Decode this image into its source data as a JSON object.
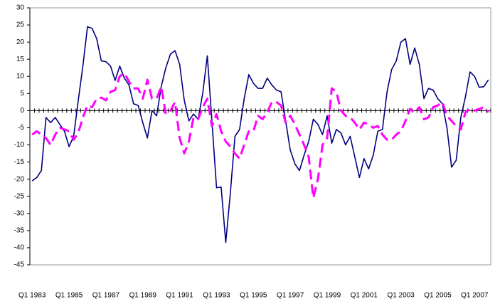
{
  "chart_data": {
    "type": "line",
    "categories": [
      "Q1 1983",
      null,
      null,
      null,
      null,
      null,
      null,
      null,
      "Q1 1985",
      null,
      null,
      null,
      null,
      null,
      null,
      null,
      "Q1 1987",
      null,
      null,
      null,
      null,
      null,
      null,
      null,
      "Q1 1989",
      null,
      null,
      null,
      null,
      null,
      null,
      null,
      "Q1 1991",
      null,
      null,
      null,
      null,
      null,
      null,
      null,
      "Q1 1993",
      null,
      null,
      null,
      null,
      null,
      null,
      null,
      "Q1 1995",
      null,
      null,
      null,
      null,
      null,
      null,
      null,
      "Q1 1997",
      null,
      null,
      null,
      null,
      null,
      null,
      null,
      "Q1 1999",
      null,
      null,
      null,
      null,
      null,
      null,
      null,
      "Q1 2001",
      null,
      null,
      null,
      null,
      null,
      null,
      null,
      "Q1 2003",
      null,
      null,
      null,
      null,
      null,
      null,
      null,
      "Q1 2005",
      null,
      null,
      null,
      null,
      null,
      null,
      null,
      "Q1 2007",
      null,
      null,
      null
    ],
    "series": [
      {
        "color": "#000080",
        "dash": "solid",
        "values": [
          -20.5,
          -19.5,
          -17.5,
          -2,
          -3.5,
          -2,
          -4,
          -6,
          -10.5,
          -7.5,
          3,
          13,
          24.5,
          24,
          21,
          14.5,
          14.3,
          13,
          8.8,
          13,
          9.5,
          7.5,
          2,
          1.5,
          -3.5,
          -8,
          0,
          -1.5,
          7,
          12.5,
          16.5,
          17.5,
          13.5,
          3,
          -3,
          -1,
          -2.5,
          5,
          16,
          -3,
          -22.5,
          -22.3,
          -38.5,
          -24,
          -7.5,
          -5.5,
          3.5,
          10.5,
          8,
          6.5,
          6.5,
          9.5,
          7.5,
          6,
          5.5,
          -3,
          -11.5,
          -15.5,
          -17.5,
          -13,
          -9,
          -2.5,
          -4,
          -7,
          -1.5,
          -9.5,
          -5.5,
          -6.5,
          -10,
          -7.5,
          -13.5,
          -19.5,
          -14,
          -17,
          -13,
          -6,
          -5.5,
          5.5,
          12,
          14.5,
          20,
          21,
          13.5,
          18.3,
          13.5,
          3.5,
          6.5,
          6,
          3.5,
          2,
          -5,
          -16.5,
          -14.5,
          -2,
          4,
          11.3,
          10,
          6.8,
          7,
          9
        ]
      },
      {
        "color": "#ff00ff",
        "dash": "dashed",
        "values": [
          -7,
          -6,
          -7,
          -8,
          -10,
          -7,
          -5,
          -5.5,
          -6,
          -8.5,
          -6.5,
          -2,
          1.5,
          1,
          3.5,
          3.8,
          3,
          5.5,
          6,
          10,
          11,
          8.5,
          6.5,
          6.5,
          3.5,
          9,
          3.5,
          3.5,
          7,
          -1,
          0,
          2.5,
          -8,
          -12.5,
          -9,
          -2,
          -2.5,
          1,
          3.5,
          -4.5,
          -1,
          -6,
          -9,
          -10.5,
          -12.5,
          -14,
          -10,
          -6,
          -6,
          -1.5,
          -2.5,
          -0.5,
          2.5,
          2.5,
          1.5,
          -3.5,
          -1.5,
          -4,
          -7,
          -10,
          -13.5,
          -25.5,
          -20,
          -10,
          -8,
          6.5,
          5.5,
          0,
          -1.5,
          -2,
          -3.5,
          -5.5,
          -3.5,
          -4,
          -5,
          -4.5,
          -7,
          -8.5,
          -8.5,
          -7,
          -6,
          -3,
          0.5,
          -0.5,
          1,
          -2.5,
          -2,
          1,
          1.5,
          2.5,
          -1.5,
          -3,
          -4.5,
          -5.5,
          -0.5,
          0.5,
          0,
          0.5,
          1,
          -0.5
        ]
      }
    ],
    "ylim": [
      -45,
      30
    ],
    "yticks": [
      -45,
      -40,
      -35,
      -30,
      -25,
      -20,
      -15,
      -10,
      -5,
      0,
      5,
      10,
      15,
      20,
      25,
      30
    ],
    "grid": false
  }
}
